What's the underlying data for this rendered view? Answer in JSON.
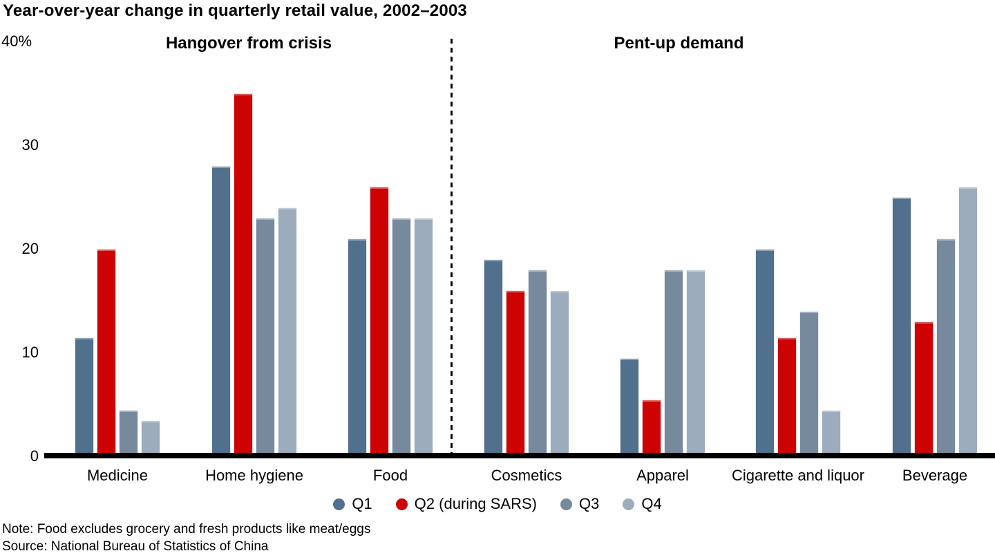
{
  "title": "Year-over-year change in quarterly retail value, 2002–2003",
  "y_axis": {
    "top_label": "40%",
    "ticks": [
      "30",
      "20",
      "10",
      "0"
    ]
  },
  "chart_data": {
    "type": "bar",
    "title": "Year-over-year change in quarterly retail value, 2002–2003",
    "unit": "percent",
    "ylim": [
      0,
      40
    ],
    "y_ticks": [
      0,
      10,
      20,
      30,
      40
    ],
    "grid": false,
    "legend_position": "bottom",
    "divider": "dashed vertical line between Food and Cosmetics",
    "sections": [
      {
        "label": "Hangover from crisis",
        "categories": [
          "Medicine",
          "Home hygiene",
          "Food"
        ]
      },
      {
        "label": "Pent-up demand",
        "categories": [
          "Cosmetics",
          "Apparel",
          "Cigarette and liquor",
          "Beverage"
        ]
      }
    ],
    "categories": [
      "Medicine",
      "Home hygiene",
      "Food",
      "Cosmetics",
      "Apparel",
      "Cigarette and liquor",
      "Beverage"
    ],
    "series": [
      {
        "name": "Q1",
        "color": "#51708E",
        "values": [
          11.5,
          28,
          21,
          19,
          9.5,
          20,
          25
        ]
      },
      {
        "name": "Q2 (during SARS)",
        "color": "#CD0202",
        "values": [
          20,
          35,
          26,
          16,
          5.5,
          11.5,
          13
        ]
      },
      {
        "name": "Q3",
        "color": "#76899D",
        "values": [
          4.5,
          23,
          23,
          18,
          18,
          14,
          21
        ]
      },
      {
        "name": "Q4",
        "color": "#9CACBC",
        "values": [
          3.5,
          24,
          23,
          16,
          18,
          4.5,
          26
        ]
      }
    ]
  },
  "notes": {
    "note": "Note: Food excludes grocery and fresh products like meat/eggs",
    "source": "Source: National Bureau of Statistics of China"
  }
}
